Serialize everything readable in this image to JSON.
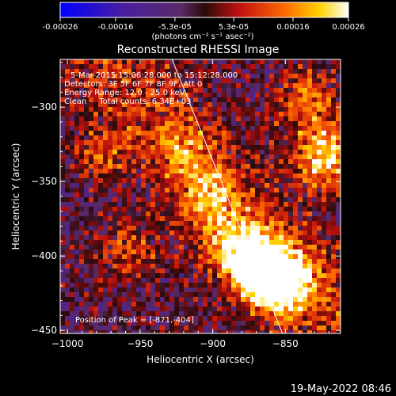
{
  "chart_data": {
    "type": "heatmap",
    "title": "Reconstructed RHESSI Image",
    "xlabel": "Heliocentric X (arcsec)",
    "ylabel": "Heliocentric Y (arcsec)",
    "xlim": [
      -1005,
      -812
    ],
    "ylim": [
      -452,
      -268
    ],
    "x_ticks": [
      -1000,
      -950,
      -900,
      -850
    ],
    "y_ticks": [
      -450,
      -400,
      -350,
      -300
    ],
    "colorbar": {
      "ticks": [
        "-0.00026",
        "-0.00016",
        "-5.3e-05",
        "5.3e-05",
        "0.00016",
        "0.00026"
      ],
      "min": -0.00026,
      "max": 0.00026,
      "unit_label": "(photons cm⁻² s⁻¹ asec⁻²)",
      "colormap": "blue-purple-red-yellow-white"
    },
    "annotations": [
      "5-Mar-2015 15:06:28.000 to 15:12:28.000",
      "Detectors: 3F 5F 6F 7F 8F 9F, Att 0",
      "Energy Range: 12.0 - 25.0 keV",
      "Clean     Total counts: 6.34E+03"
    ],
    "peak_label": "Position of Peak = [-871,-404]",
    "peak": [
      -871,
      -404
    ],
    "limb_line": [
      [
        -928,
        -268
      ],
      [
        -852,
        -452
      ]
    ],
    "sources": [
      {
        "x": -871,
        "y": -404,
        "amp": 1.0
      },
      {
        "x": -822,
        "y": -333,
        "amp": 0.9
      },
      {
        "x": -858,
        "y": -420,
        "amp": 0.75
      },
      {
        "x": -848,
        "y": -417,
        "amp": 0.6
      },
      {
        "x": -903,
        "y": -360,
        "amp": 0.45
      },
      {
        "x": -890,
        "y": -390,
        "amp": 0.45
      },
      {
        "x": -835,
        "y": -296,
        "amp": 0.55
      },
      {
        "x": -957,
        "y": -395,
        "amp": 0.4
      },
      {
        "x": -975,
        "y": -330,
        "amp": 0.38
      },
      {
        "x": -920,
        "y": -330,
        "amp": 0.35
      }
    ]
  },
  "timestamp": "19-May-2022 08:46"
}
